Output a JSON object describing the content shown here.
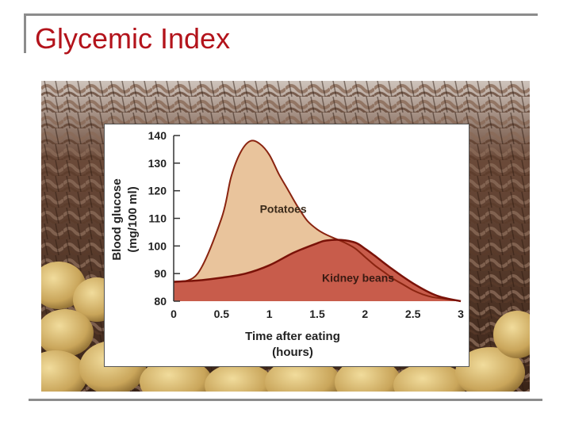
{
  "slide": {
    "title": "Glycemic Index"
  },
  "colors": {
    "title": "#b3131b",
    "frame": "#8c8c8c",
    "potatoes_fill": "#e9c49c",
    "potatoes_line": "#8a2410",
    "beans_fill": "#c85c4b",
    "beans_line": "#7a1208"
  },
  "background_image": {
    "subject": "wicker basket with potatoes"
  },
  "chart_data": {
    "type": "area",
    "title": "",
    "xlabel_line1": "Time after eating",
    "xlabel_line2": "(hours)",
    "ylabel_line1": "Blood glucose",
    "ylabel_line2": "(mg/100 ml)",
    "xlim": [
      0,
      3
    ],
    "ylim": [
      80,
      140
    ],
    "x_ticks": [
      0,
      0.5,
      1,
      1.5,
      2,
      2.5,
      3
    ],
    "x_tick_labels": [
      "0",
      "0.5",
      "1",
      "1.5",
      "2",
      "2.5",
      "3"
    ],
    "y_ticks": [
      80,
      90,
      100,
      110,
      120,
      130,
      140
    ],
    "y_tick_labels": [
      "80",
      "90",
      "100",
      "110",
      "120",
      "130",
      "140"
    ],
    "grid": false,
    "series": [
      {
        "name": "Potatoes",
        "x": [
          0,
          0.25,
          0.5,
          0.6,
          0.7,
          0.8,
          0.9,
          1.0,
          1.1,
          1.2,
          1.3,
          1.4,
          1.5,
          1.6,
          1.7,
          1.8,
          1.9,
          2.0,
          2.1,
          2.2,
          2.3,
          2.4,
          2.5,
          2.6,
          2.7,
          2.8,
          2.9,
          3.0
        ],
        "y": [
          87,
          90,
          110,
          125,
          134,
          138,
          137,
          133,
          126,
          120,
          114,
          109,
          106,
          104,
          102.5,
          101,
          99,
          96,
          93,
          90.5,
          88,
          86,
          84,
          82.5,
          81.5,
          81,
          80.5,
          80
        ]
      },
      {
        "name": "Kidney beans",
        "x": [
          0,
          0.25,
          0.5,
          0.75,
          1.0,
          1.25,
          1.5,
          1.6,
          1.75,
          1.9,
          2.0,
          2.1,
          2.25,
          2.5,
          2.75,
          3.0
        ],
        "y": [
          87,
          87.5,
          88.5,
          90,
          93,
          97.5,
          101,
          102,
          102.2,
          101.2,
          99,
          96.5,
          92.5,
          86.5,
          82,
          80
        ]
      }
    ],
    "labels": [
      {
        "text": "Potatoes",
        "x": 0.9,
        "y": 112
      },
      {
        "text": "Kidney beans",
        "x": 1.55,
        "y": 87
      }
    ]
  }
}
